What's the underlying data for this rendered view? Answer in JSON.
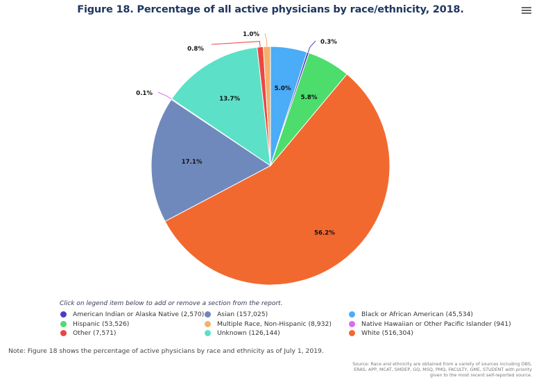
{
  "chart_data": {
    "type": "pie",
    "title": "Figure 18. Percentage of all active physicians by race/ethnicity, 2018.",
    "start_angle_deg": 0,
    "direction": "clockwise",
    "slices": [
      {
        "name": "Black or African American",
        "count": 45534,
        "percent": 5.0,
        "label": "5.0%",
        "color": "#4bacf8",
        "label_mode": "inside"
      },
      {
        "name": "American Indian or Alaska Native",
        "count": 2570,
        "percent": 0.3,
        "label": "0.3%",
        "color": "#4b3cc6",
        "label_mode": "outside"
      },
      {
        "name": "Hispanic",
        "count": 53526,
        "percent": 5.8,
        "label": "5.8%",
        "color": "#4cdd6c",
        "label_mode": "inside"
      },
      {
        "name": "White",
        "count": 516304,
        "percent": 56.2,
        "label": "56.2%",
        "color": "#f2692f",
        "label_mode": "inside"
      },
      {
        "name": "Asian",
        "count": 157025,
        "percent": 17.1,
        "label": "17.1%",
        "color": "#6f89bd",
        "label_mode": "inside"
      },
      {
        "name": "Native Hawaiian or Other Pacific Islander",
        "count": 941,
        "percent": 0.1,
        "label": "0.1%",
        "color": "#d86cf0",
        "label_mode": "outside"
      },
      {
        "name": "Unknown",
        "count": 126144,
        "percent": 13.7,
        "label": "13.7%",
        "color": "#5ce0c8",
        "label_mode": "inside"
      },
      {
        "name": "Other",
        "count": 7571,
        "percent": 0.8,
        "label": "0.8%",
        "color": "#ec4642",
        "label_mode": "outside"
      },
      {
        "name": "Multiple Race, Non-Hispanic",
        "count": 8932,
        "percent": 1.0,
        "label": "1.0%",
        "color": "#f5b06b",
        "label_mode": "outside"
      }
    ],
    "legend_position": "bottom"
  },
  "header": {
    "title": "Figure 18. Percentage of all active physicians by race/ethnicity, 2018.",
    "menu_icon": "hamburger-menu-icon"
  },
  "legend": {
    "hint": "Click on legend item below to add or remove a section from the report.",
    "items": [
      {
        "label": "American Indian or Alaska Native (2,570)",
        "color": "#4b3cc6"
      },
      {
        "label": "Asian (157,025)",
        "color": "#6f89bd"
      },
      {
        "label": "Black or African American (45,534)",
        "color": "#4bacf8"
      },
      {
        "label": "Hispanic (53,526)",
        "color": "#4cdd6c"
      },
      {
        "label": "Multiple Race, Non-Hispanic (8,932)",
        "color": "#f5b06b"
      },
      {
        "label": "Native Hawaiian or Other Pacific Islander (941)",
        "color": "#d86cf0"
      },
      {
        "label": "Other (7,571)",
        "color": "#ec4642"
      },
      {
        "label": "Unknown (126,144)",
        "color": "#5ce0c8"
      },
      {
        "label": "White (516,304)",
        "color": "#f2692f"
      }
    ]
  },
  "footer": {
    "note": "Note: Figure 18 shows the percentage of active physicians by race and ethnicity as of July 1, 2019.",
    "source_lines": [
      "Source: Race and ethnicity are obtained from a variety of sources including DBS,",
      "ERAS, APP, MCAT, SMDEP, GQ, MSQ, PMQ, FACULTY, GME, STUDENT with priority",
      "given to the most recent self-reported source."
    ]
  }
}
